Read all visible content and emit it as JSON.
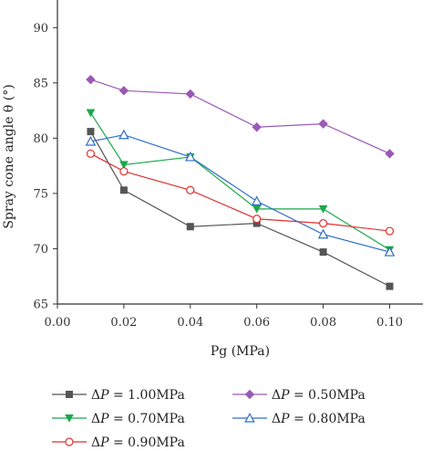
{
  "chart_data": {
    "type": "line",
    "xlabel": "Pg (MPa)",
    "ylabel": "Spray cone angle θ (°)",
    "xlim": [
      0.0,
      0.11
    ],
    "ylim": [
      65,
      92.5
    ],
    "x_ticks": [
      "0.00",
      "0.02",
      "0.04",
      "0.06",
      "0.08",
      "0.10"
    ],
    "y_ticks": [
      "65",
      "70",
      "75",
      "80",
      "85",
      "90"
    ],
    "grid": false,
    "legend_placement": "bottom",
    "x": [
      0.01,
      0.02,
      0.04,
      0.06,
      0.08,
      0.1
    ],
    "series": [
      {
        "name": "ΔP = 1.00MPa",
        "prefix": "Δ",
        "italic": "P",
        "suffix": " = 1.00MPa",
        "color": "#555555",
        "marker": "square",
        "values": [
          80.6,
          75.3,
          72.0,
          72.3,
          69.7,
          66.6
        ]
      },
      {
        "name": "ΔP = 0.50MPa",
        "prefix": "Δ",
        "italic": "P",
        "suffix": " = 0.50MPa",
        "color": "#9b59b6",
        "marker": "diamond",
        "values": [
          85.3,
          84.3,
          84.0,
          81.0,
          81.3,
          78.6
        ]
      },
      {
        "name": "ΔP = 0.70MPa",
        "prefix": "Δ",
        "italic": "P",
        "suffix": " = 0.70MPa",
        "color": "#1aa84a",
        "marker": "triangle-down",
        "values": [
          82.3,
          77.6,
          78.3,
          73.6,
          73.6,
          69.9
        ]
      },
      {
        "name": "ΔP = 0.80MPa",
        "prefix": "Δ",
        "italic": "P",
        "suffix": " = 0.80MPa",
        "color": "#2e6ec8",
        "marker": "triangle-up",
        "values": [
          79.7,
          80.3,
          78.3,
          74.3,
          71.3,
          69.7
        ]
      },
      {
        "name": "ΔP = 0.90MPa",
        "prefix": "Δ",
        "italic": "P",
        "suffix": " = 0.90MPa",
        "color": "#e03030",
        "marker": "circle",
        "values": [
          78.6,
          77.0,
          75.3,
          72.7,
          72.3,
          71.6
        ]
      }
    ]
  }
}
